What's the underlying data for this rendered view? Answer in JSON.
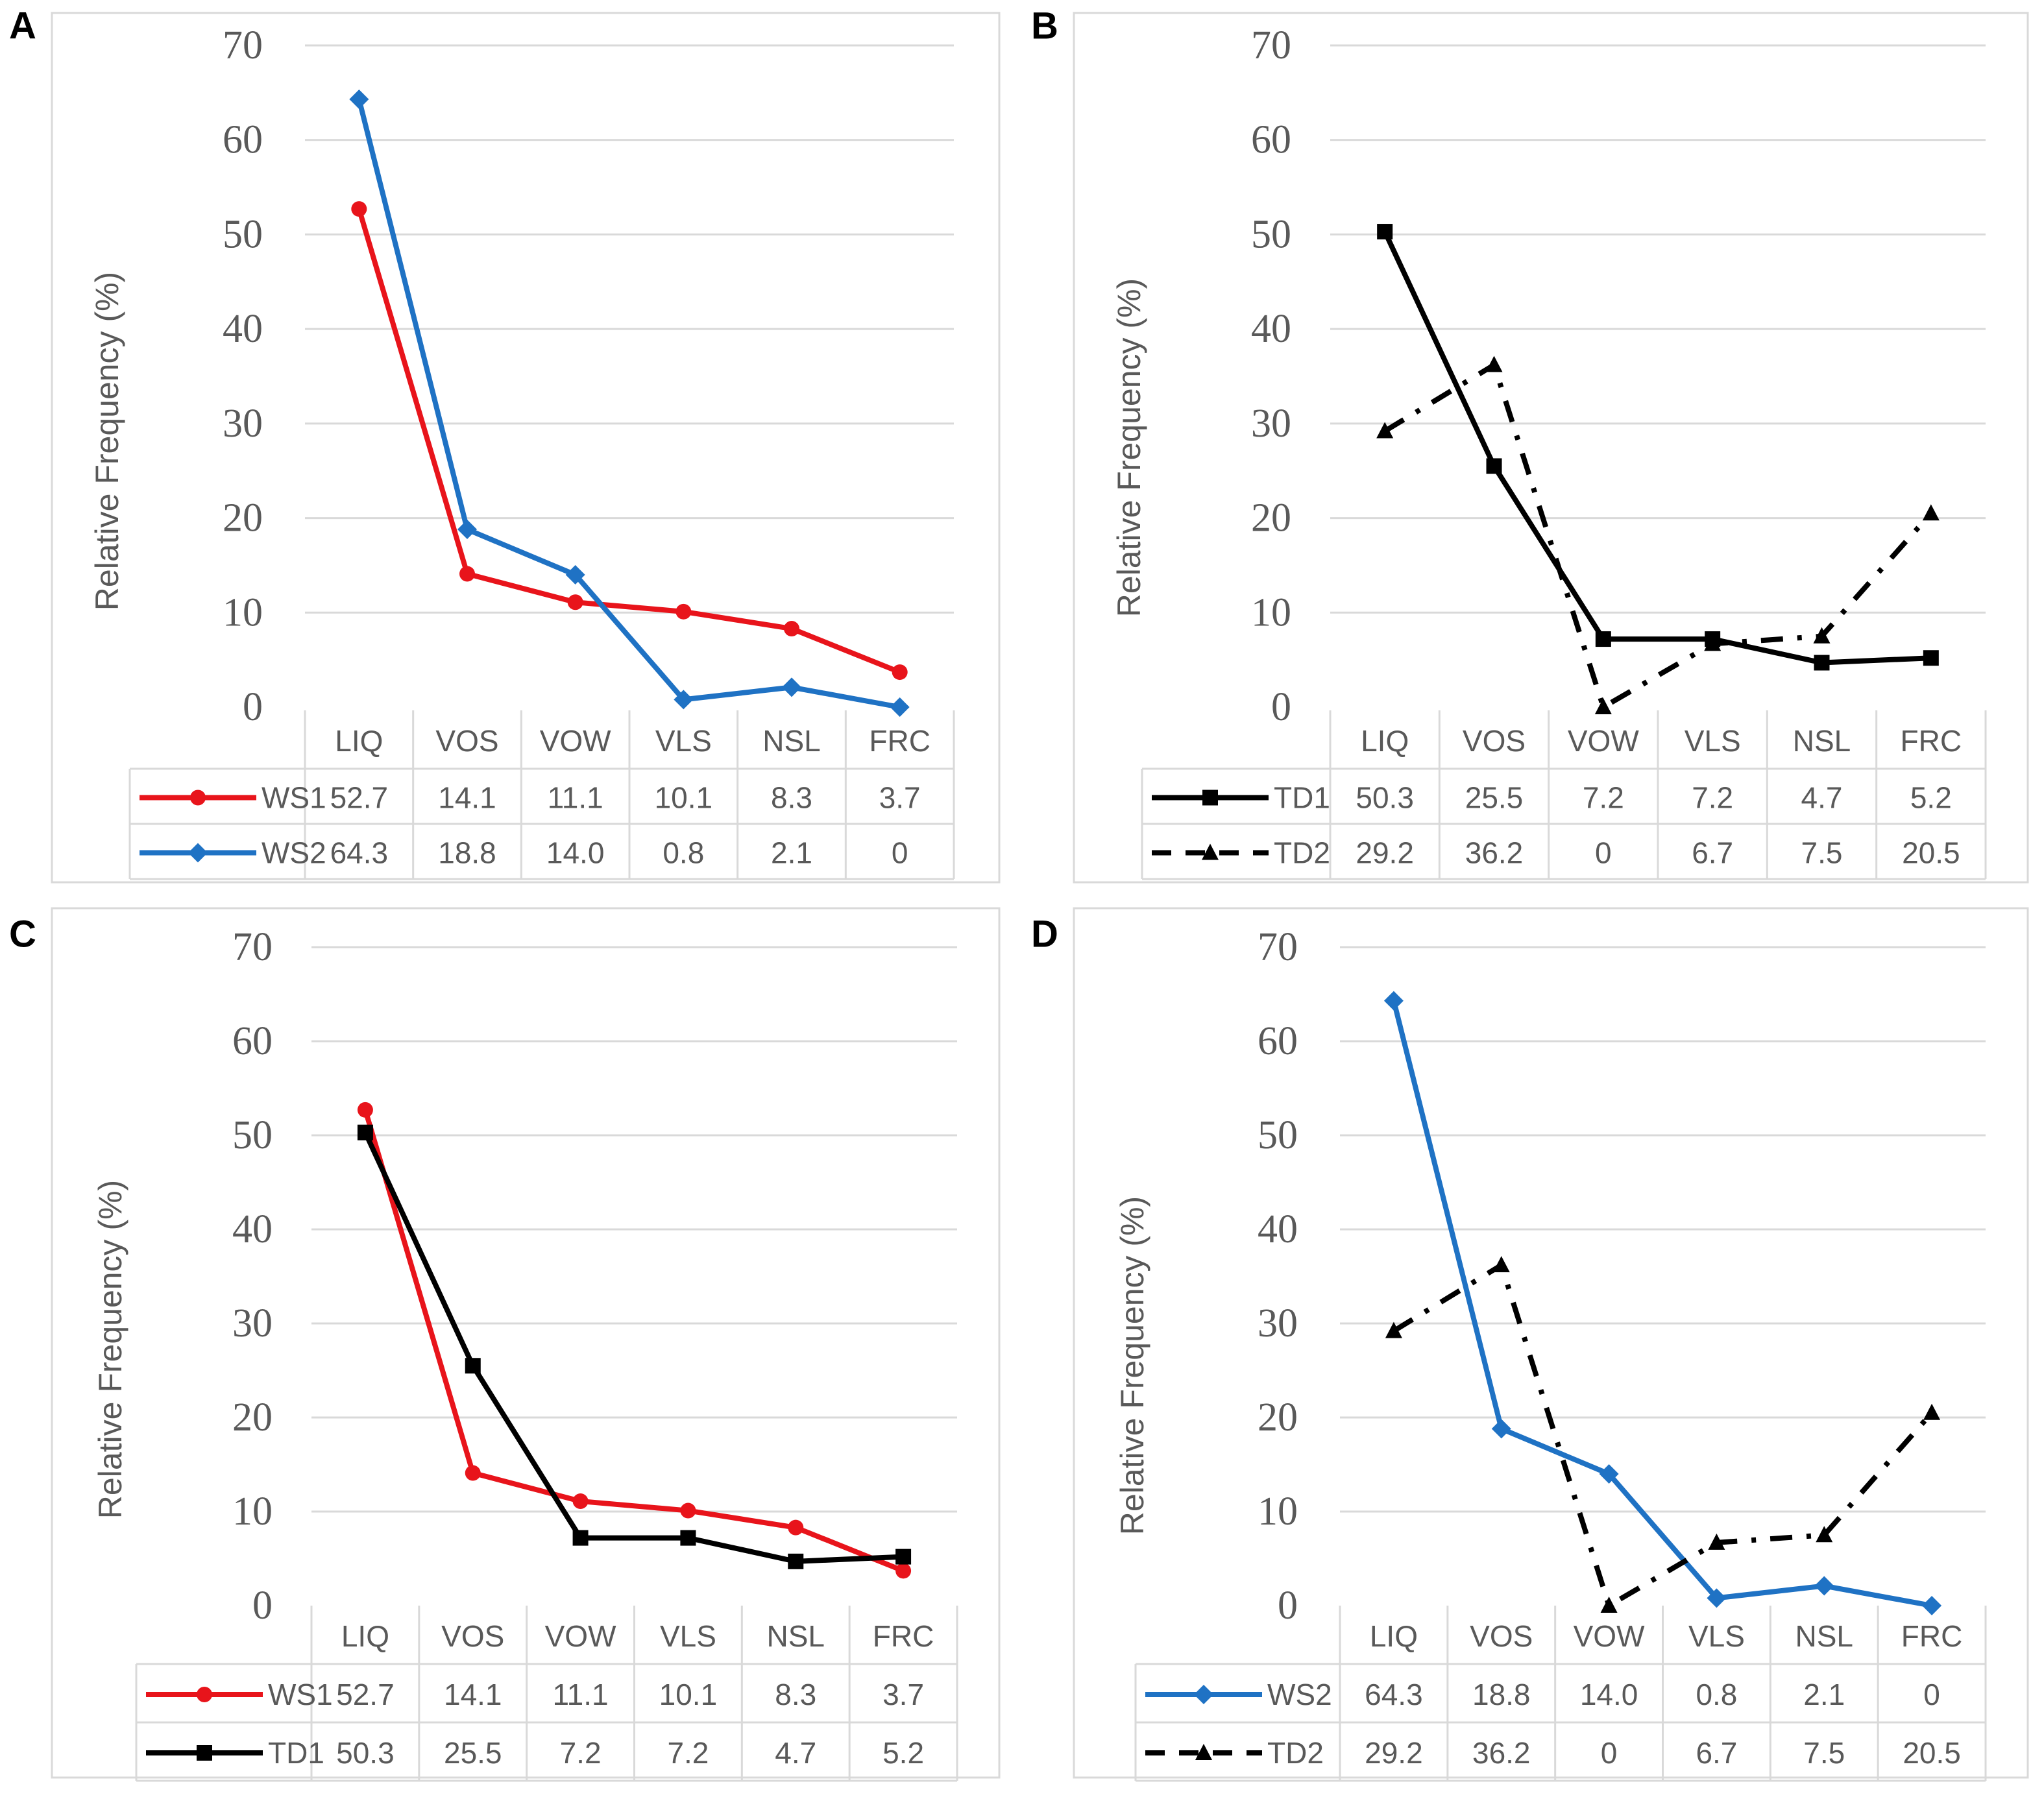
{
  "figure": {
    "y_axis_label": "Relative Frequency (%)",
    "y_ticks": [
      "0",
      "10",
      "20",
      "30",
      "40",
      "50",
      "60",
      "70"
    ]
  },
  "chart_data": [
    {
      "panel_label": "A",
      "type": "line",
      "categories": [
        "LIQ",
        "VOS",
        "VOW",
        "VLS",
        "NSL",
        "FRC"
      ],
      "ylabel": "Relative Frequency (%)",
      "ylim": [
        0,
        70
      ],
      "grid": true,
      "legend": "data-table",
      "series": [
        {
          "name": "WS1",
          "color": "#e8141b",
          "marker": "circle",
          "dash": "solid",
          "values": [
            52.7,
            14.1,
            11.1,
            10.1,
            8.3,
            3.7
          ],
          "labels": [
            "52.7",
            "14.1",
            "11.1",
            "10.1",
            "8.3",
            "3.7"
          ]
        },
        {
          "name": "WS2",
          "color": "#1f72c4",
          "marker": "diamond",
          "dash": "solid",
          "values": [
            64.3,
            18.8,
            14.0,
            0.8,
            2.1,
            0
          ],
          "labels": [
            "64.3",
            "18.8",
            "14.0",
            "0.8",
            "2.1",
            "0"
          ]
        }
      ]
    },
    {
      "panel_label": "B",
      "type": "line",
      "categories": [
        "LIQ",
        "VOS",
        "VOW",
        "VLS",
        "NSL",
        "FRC"
      ],
      "ylabel": "Relative Frequency (%)",
      "ylim": [
        0,
        70
      ],
      "grid": true,
      "legend": "data-table",
      "series": [
        {
          "name": "TD1",
          "color": "#000000",
          "marker": "square",
          "dash": "solid",
          "values": [
            50.3,
            25.5,
            7.2,
            7.2,
            4.7,
            5.2
          ],
          "labels": [
            "50.3",
            "25.5",
            "7.2",
            "7.2",
            "4.7",
            "5.2"
          ]
        },
        {
          "name": "TD2",
          "color": "#000000",
          "marker": "triangle",
          "dash": "dashdot",
          "values": [
            29.2,
            36.2,
            0,
            6.7,
            7.5,
            20.5
          ],
          "labels": [
            "29.2",
            "36.2",
            "0",
            "6.7",
            "7.5",
            "20.5"
          ]
        }
      ]
    },
    {
      "panel_label": "C",
      "type": "line",
      "categories": [
        "LIQ",
        "VOS",
        "VOW",
        "VLS",
        "NSL",
        "FRC"
      ],
      "ylabel": "Relative Frequency (%)",
      "ylim": [
        0,
        70
      ],
      "grid": true,
      "legend": "data-table",
      "series": [
        {
          "name": "WS1",
          "color": "#e8141b",
          "marker": "circle",
          "dash": "solid",
          "values": [
            52.7,
            14.1,
            11.1,
            10.1,
            8.3,
            3.7
          ],
          "labels": [
            "52.7",
            "14.1",
            "11.1",
            "10.1",
            "8.3",
            "3.7"
          ]
        },
        {
          "name": "TD1",
          "color": "#000000",
          "marker": "square",
          "dash": "solid",
          "values": [
            50.3,
            25.5,
            7.2,
            7.2,
            4.7,
            5.2
          ],
          "labels": [
            "50.3",
            "25.5",
            "7.2",
            "7.2",
            "4.7",
            "5.2"
          ]
        }
      ]
    },
    {
      "panel_label": "D",
      "type": "line",
      "categories": [
        "LIQ",
        "VOS",
        "VOW",
        "VLS",
        "NSL",
        "FRC"
      ],
      "ylabel": "Relative Frequency (%)",
      "ylim": [
        0,
        70
      ],
      "grid": true,
      "legend": "data-table",
      "series": [
        {
          "name": "WS2",
          "color": "#1f72c4",
          "marker": "diamond",
          "dash": "solid",
          "values": [
            64.3,
            18.8,
            14.0,
            0.8,
            2.1,
            0
          ],
          "labels": [
            "64.3",
            "18.8",
            "14.0",
            "0.8",
            "2.1",
            "0"
          ]
        },
        {
          "name": "TD2",
          "color": "#000000",
          "marker": "triangle",
          "dash": "dashdot",
          "values": [
            29.2,
            36.2,
            0,
            6.7,
            7.5,
            20.5
          ],
          "labels": [
            "29.2",
            "36.2",
            "0",
            "6.7",
            "7.5",
            "20.5"
          ]
        }
      ]
    }
  ]
}
